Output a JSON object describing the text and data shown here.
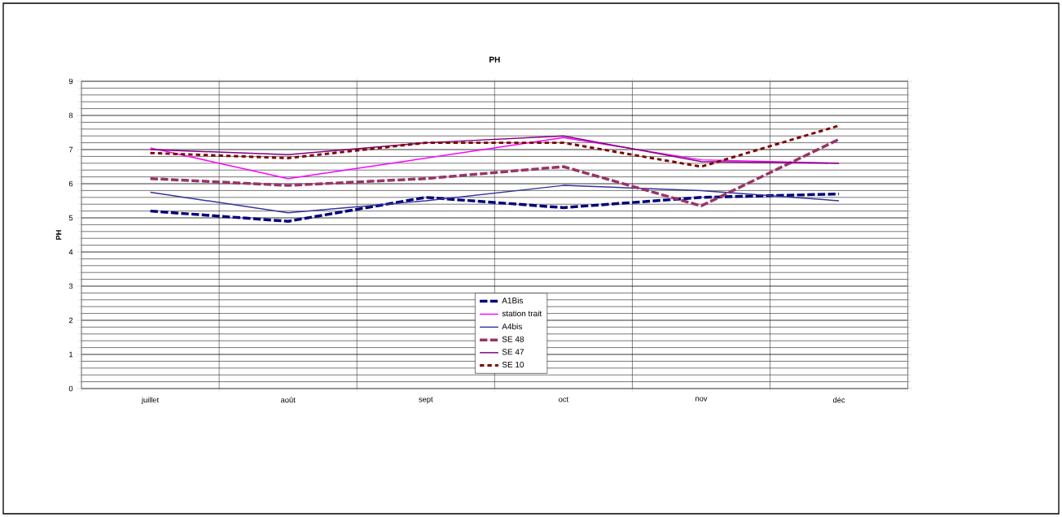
{
  "chart_data": {
    "type": "line",
    "title": "PH",
    "ylabel": "PH",
    "categories": [
      "juillet",
      "août",
      "sept",
      "oct",
      "nov",
      "déc"
    ],
    "series": [
      {
        "name": "A1Bis",
        "color": "#000080",
        "line_style": "dashed",
        "values": [
          5.2,
          4.9,
          5.6,
          5.3,
          5.6,
          5.7
        ]
      },
      {
        "name": "station trait",
        "color": "#ff00ff",
        "line_style": "solid",
        "values": [
          7.05,
          6.15,
          6.75,
          7.35,
          6.7,
          6.6
        ]
      },
      {
        "name": "A4bis",
        "color": "#333399",
        "line_style": "solid",
        "values": [
          5.75,
          5.15,
          5.5,
          5.95,
          5.8,
          5.5
        ]
      },
      {
        "name": "SE 48",
        "color": "#993366",
        "line_style": "dashed",
        "values": [
          6.15,
          5.95,
          6.15,
          6.5,
          5.35,
          7.3
        ]
      },
      {
        "name": "SE 47",
        "color": "#800080",
        "line_style": "solid",
        "values": [
          7.0,
          6.85,
          7.2,
          7.4,
          6.65,
          6.6
        ]
      },
      {
        "name": "SE 10",
        "color": "#800000",
        "line_style": "dotted",
        "values": [
          6.9,
          6.75,
          7.2,
          7.2,
          6.5,
          7.7
        ]
      }
    ],
    "ylim": [
      0,
      9
    ],
    "yticks": [
      0,
      1,
      2,
      3,
      4,
      5,
      6,
      7,
      8,
      9
    ],
    "grid": true,
    "legend": "center",
    "marker": "none"
  }
}
